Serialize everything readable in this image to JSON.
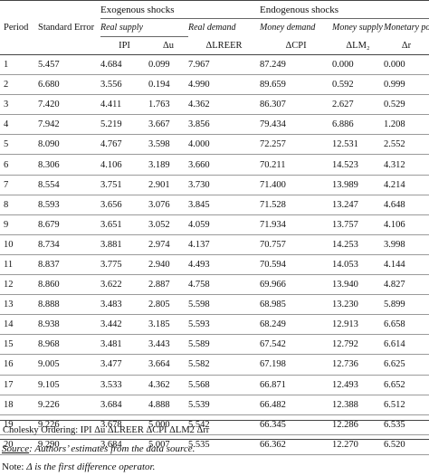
{
  "table": {
    "groups": {
      "exogenous": "Exogenous shocks",
      "endogenous": "Endogenous shocks"
    },
    "subgroups": [
      "Real supply",
      "Real demand",
      "Money demand",
      "Money supply",
      "Monetary policy"
    ],
    "headers": {
      "period": "Period",
      "std_error": "Standard Error",
      "cols": [
        "IPI",
        "Δu",
        "ΔLREER",
        "ΔCPI",
        "ΔLM₂",
        "Δr"
      ]
    },
    "rows": [
      [
        "1",
        "5.457",
        "4.684",
        "0.099",
        "7.967",
        "87.249",
        "0.000",
        "0.000"
      ],
      [
        "2",
        "6.680",
        "3.556",
        "0.194",
        "4.990",
        "89.659",
        "0.592",
        "0.999"
      ],
      [
        "3",
        "7.420",
        "4.411",
        "1.763",
        "4.362",
        "86.307",
        "2.627",
        "0.529"
      ],
      [
        "4",
        "7.942",
        "5.219",
        "3.667",
        "3.856",
        "79.434",
        "6.886",
        "1.208"
      ],
      [
        "5",
        "8.090",
        "4.767",
        "3.598",
        "4.000",
        "72.257",
        "12.531",
        "2.552"
      ],
      [
        "6",
        "8.306",
        "4.106",
        "3.189",
        "3.660",
        "70.211",
        "14.523",
        "4.312"
      ],
      [
        "7",
        "8.554",
        "3.751",
        "2.901",
        "3.730",
        "71.400",
        "13.989",
        "4.214"
      ],
      [
        "8",
        "8.593",
        "3.656",
        "3.076",
        "3.845",
        "71.528",
        "13.247",
        "4.648"
      ],
      [
        "9",
        "8.679",
        "3.651",
        "3.052",
        "4.059",
        "71.934",
        "13.757",
        "4.106"
      ],
      [
        "10",
        "8.734",
        "3.881",
        "2.974",
        "4.137",
        "70.757",
        "14.253",
        "3.998"
      ],
      [
        "11",
        "8.837",
        "3.775",
        "2.940",
        "4.493",
        "70.594",
        "14.053",
        "4.144"
      ],
      [
        "12",
        "8.860",
        "3.622",
        "2.887",
        "4.758",
        "69.966",
        "13.940",
        "4.827"
      ],
      [
        "13",
        "8.888",
        "3.483",
        "2.805",
        "5.598",
        "68.985",
        "13.230",
        "5.899"
      ],
      [
        "14",
        "8.938",
        "3.442",
        "3.185",
        "5.593",
        "68.249",
        "12.913",
        "6.658"
      ],
      [
        "15",
        "8.968",
        "3.481",
        "3.443",
        "5.589",
        "67.542",
        "12.792",
        "6.614"
      ],
      [
        "16",
        "9.005",
        "3.477",
        "3.664",
        "5.582",
        "67.198",
        "12.736",
        "6.625"
      ],
      [
        "17",
        "9.105",
        "3.533",
        "4.362",
        "5.568",
        "66.871",
        "12.493",
        "6.652"
      ],
      [
        "18",
        "9.226",
        "3.684",
        "4.888",
        "5.539",
        "66.482",
        "12.388",
        "6.512"
      ],
      [
        "19",
        "9.226",
        "3.678",
        "5.000",
        "5.542",
        "66.345",
        "12.286",
        "6.535"
      ],
      [
        "20",
        "9.290",
        "3.684",
        "5.007",
        "5.535",
        "66.362",
        "12.270",
        "6.520"
      ]
    ]
  },
  "notes": {
    "ordering": "Cholesky Ordering: IPI Δu ΔLREER ΔCPI ΔLM2 Δrr",
    "source_label": "Source",
    "source_text": ": Authors’ estimates from the data source.",
    "note_prefix": "Note: ",
    "note_symbol": "Δ",
    "note_text": " is the first difference operator."
  }
}
